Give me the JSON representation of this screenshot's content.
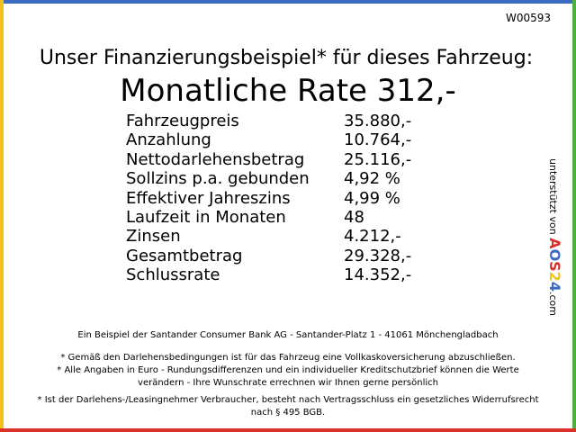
{
  "code": "W00593",
  "header": {
    "title": "Unser Finanzierungsbeispiel* für dieses Fahrzeug:",
    "rate": "Monatliche Rate 312,-"
  },
  "table": {
    "rows": [
      [
        "Fahrzeugpreis",
        "35.880,-"
      ],
      [
        "Anzahlung",
        "10.764,-"
      ],
      [
        "Nettodarlehensbetrag",
        "25.116,-"
      ],
      [
        "Sollzins p.a. gebunden",
        "4,92 %"
      ],
      [
        "Effektiver Jahreszins",
        "4,99 %"
      ],
      [
        "Laufzeit in Monaten",
        "48"
      ],
      [
        "Zinsen",
        "4.212,-"
      ],
      [
        "Gesamtbetrag",
        "29.328,-"
      ],
      [
        "Schlussrate",
        "14.352,-"
      ]
    ]
  },
  "sidebar": {
    "text": "unterstützt von",
    "logo": [
      "A",
      "O",
      "S",
      "2",
      "4"
    ],
    "domain": ".com"
  },
  "footer": {
    "bank": "Ein Beispiel der Santander Consumer Bank AG - Santander-Platz 1 - 41061 Mönchengladbach",
    "notes": [
      "* Gemäß den Darlehensbedingungen ist für das Fahrzeug eine Vollkaskoversicherung abzuschließen.",
      "* Alle Angaben in Euro - Rundungsdifferenzen und ein individueller Kreditschutzbrief können die Werte verändern - Ihre Wunschrate errechnen wir Ihnen gerne persönlich",
      "* Ist der Darlehens-/Leasingnehmer Verbraucher, besteht nach Vertragsschluss ein gesetzliches Widerrufsrecht nach § 495 BGB."
    ]
  }
}
